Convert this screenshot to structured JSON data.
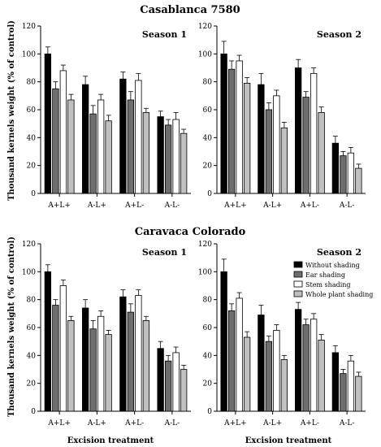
{
  "figure": {
    "title_top": "Casablanca 7580",
    "title_bottom": "Caravaca Colorado",
    "ylabel": "Thousand kernels weight (%  of control)",
    "xlabel": "Excision treatment"
  },
  "chart_data": [
    {
      "type": "bar",
      "panel": "Casablanca 7580 - Season 1",
      "title": "Season 1",
      "categories": [
        "A+L+",
        "A-L+",
        "A+L-",
        "A-L-"
      ],
      "ylim": [
        0,
        120
      ],
      "yticks": [
        0,
        20,
        40,
        60,
        80,
        100,
        120
      ],
      "series": [
        {
          "name": "Without shading",
          "color": "#000000",
          "values": [
            100,
            78,
            82,
            55
          ],
          "errors": [
            5,
            6,
            5,
            4
          ]
        },
        {
          "name": "Ear shading",
          "color": "#6e6e6e",
          "values": [
            75,
            57,
            67,
            49
          ],
          "errors": [
            5,
            6,
            6,
            4
          ]
        },
        {
          "name": "Stem shading",
          "color": "#ffffff",
          "values": [
            88,
            67,
            81,
            53
          ],
          "errors": [
            4,
            4,
            5,
            5
          ]
        },
        {
          "name": "Whole plant shading",
          "color": "#c0c0c0",
          "values": [
            67,
            52,
            58,
            43
          ],
          "errors": [
            4,
            4,
            3,
            3
          ]
        }
      ]
    },
    {
      "type": "bar",
      "panel": "Casablanca 7580 - Season 2",
      "title": "Season 2",
      "categories": [
        "A+L+",
        "A-L+",
        "A+L-",
        "A-L-"
      ],
      "ylim": [
        0,
        120
      ],
      "yticks": [
        0,
        20,
        40,
        60,
        80,
        100,
        120
      ],
      "series": [
        {
          "name": "Without shading",
          "color": "#000000",
          "values": [
            100,
            78,
            90,
            36
          ],
          "errors": [
            9,
            8,
            6,
            5
          ]
        },
        {
          "name": "Ear shading",
          "color": "#6e6e6e",
          "values": [
            89,
            60,
            69,
            27
          ],
          "errors": [
            6,
            5,
            4,
            3
          ]
        },
        {
          "name": "Stem shading",
          "color": "#ffffff",
          "values": [
            95,
            70,
            86,
            29
          ],
          "errors": [
            4,
            4,
            4,
            4
          ]
        },
        {
          "name": "Whole plant shading",
          "color": "#c0c0c0",
          "values": [
            79,
            47,
            58,
            18
          ],
          "errors": [
            4,
            4,
            4,
            3
          ]
        }
      ]
    },
    {
      "type": "bar",
      "panel": "Caravaca Colorado - Season 1",
      "title": "Season 1",
      "categories": [
        "A+L+",
        "A-L+",
        "A+L-",
        "A-L-"
      ],
      "ylim": [
        0,
        120
      ],
      "yticks": [
        0,
        20,
        40,
        60,
        80,
        100,
        120
      ],
      "series": [
        {
          "name": "Without shading",
          "color": "#000000",
          "values": [
            100,
            74,
            82,
            45
          ],
          "errors": [
            5,
            6,
            5,
            5
          ]
        },
        {
          "name": "Ear shading",
          "color": "#6e6e6e",
          "values": [
            76,
            59,
            71,
            36
          ],
          "errors": [
            4,
            6,
            6,
            4
          ]
        },
        {
          "name": "Stem shading",
          "color": "#ffffff",
          "values": [
            90,
            68,
            83,
            42
          ],
          "errors": [
            4,
            4,
            4,
            4
          ]
        },
        {
          "name": "Whole plant shading",
          "color": "#c0c0c0",
          "values": [
            65,
            55,
            65,
            30
          ],
          "errors": [
            3,
            3,
            3,
            3
          ]
        }
      ]
    },
    {
      "type": "bar",
      "panel": "Caravaca Colorado - Season 2",
      "title": "Season 2",
      "categories": [
        "A+L+",
        "A-L+",
        "A+L-",
        "A-L-"
      ],
      "ylim": [
        0,
        120
      ],
      "yticks": [
        0,
        20,
        40,
        60,
        80,
        100,
        120
      ],
      "legend": "top-right",
      "series": [
        {
          "name": "Without shading",
          "color": "#000000",
          "values": [
            100,
            69,
            73,
            42
          ],
          "errors": [
            9,
            7,
            5,
            5
          ]
        },
        {
          "name": "Ear shading",
          "color": "#6e6e6e",
          "values": [
            72,
            50,
            62,
            27
          ],
          "errors": [
            5,
            4,
            4,
            3
          ]
        },
        {
          "name": "Stem shading",
          "color": "#ffffff",
          "values": [
            81,
            58,
            66,
            36
          ],
          "errors": [
            4,
            4,
            4,
            4
          ]
        },
        {
          "name": "Whole plant shading",
          "color": "#c0c0c0",
          "values": [
            53,
            37,
            51,
            25
          ],
          "errors": [
            4,
            3,
            4,
            3
          ]
        }
      ]
    }
  ]
}
